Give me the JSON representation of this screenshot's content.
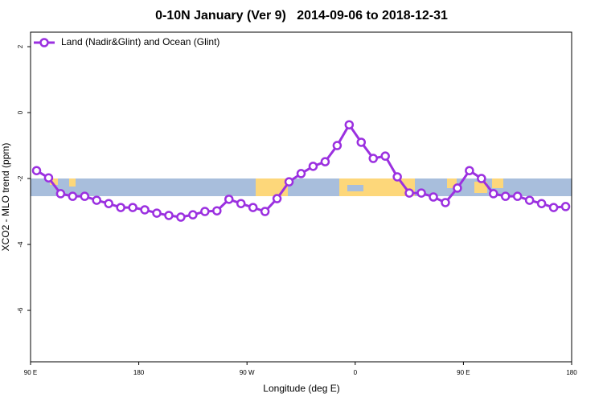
{
  "chart_data": {
    "type": "line",
    "title": "0-10N January (Ver 9)   2014-09-06 to 2018-12-31",
    "x_label": "Longitude (deg E)",
    "y_label": "XCO2 - MLO trend (ppm)",
    "x": [
      95,
      105,
      115,
      125,
      135,
      145,
      155,
      165,
      175,
      185,
      195,
      205,
      215,
      225,
      235,
      245,
      255,
      265,
      275,
      285,
      295,
      305,
      315,
      325,
      335,
      345,
      355,
      365,
      375,
      385,
      395,
      405,
      415,
      425,
      435,
      445,
      455,
      465,
      475,
      485,
      495,
      505,
      515,
      525,
      535
    ],
    "series": [
      {
        "name": "Land (Nadir&Glint) and Ocean (Glint)",
        "color": "#9b30e0",
        "values": [
          -1.76,
          -1.98,
          -2.46,
          -2.54,
          -2.54,
          -2.66,
          -2.76,
          -2.88,
          -2.88,
          -2.95,
          -3.05,
          -3.12,
          -3.17,
          -3.1,
          -3.0,
          -2.98,
          -2.63,
          -2.76,
          -2.88,
          -3.0,
          -2.61,
          -2.1,
          -1.85,
          -1.63,
          -1.49,
          -1.0,
          -0.37,
          -0.9,
          -1.39,
          -1.32,
          -1.95,
          -2.44,
          -2.44,
          -2.56,
          -2.73,
          -2.29,
          -1.76,
          -2.0,
          -2.46,
          -2.54,
          -2.54,
          -2.66,
          -2.76,
          -2.88,
          -2.85
        ]
      }
    ],
    "xlim": [
      90,
      540
    ],
    "xticks": [
      {
        "value": 90,
        "label": "90 E"
      },
      180,
      {
        "value": 270,
        "label": "90 W"
      },
      {
        "value": 360,
        "label": "0"
      },
      {
        "value": 450,
        "label": "90 E"
      },
      {
        "value": 540,
        "label": "180"
      }
    ],
    "ylim": [
      -7.56,
      2.44
    ],
    "yticks": [
      2,
      0,
      -2,
      -4,
      -6
    ],
    "legend": "top-left"
  }
}
